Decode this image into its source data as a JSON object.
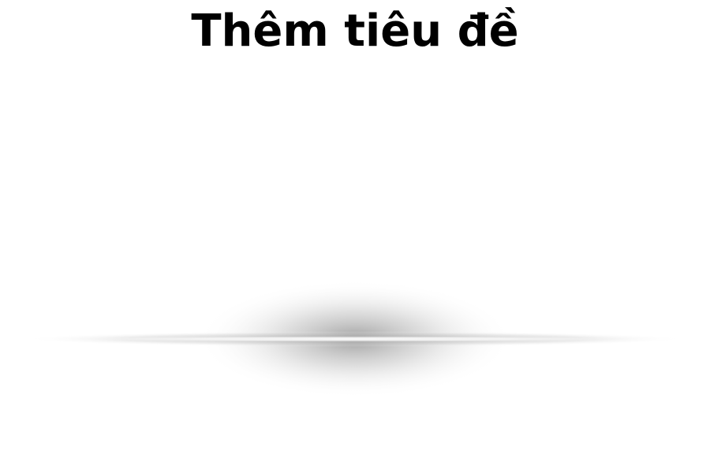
{
  "page": {
    "title": "Thêm tiêu đề"
  },
  "divider": {
    "icon": "shadow-glow-divider",
    "shadow_color": "#9a9a9a",
    "highlight_color": "#ffffff"
  }
}
